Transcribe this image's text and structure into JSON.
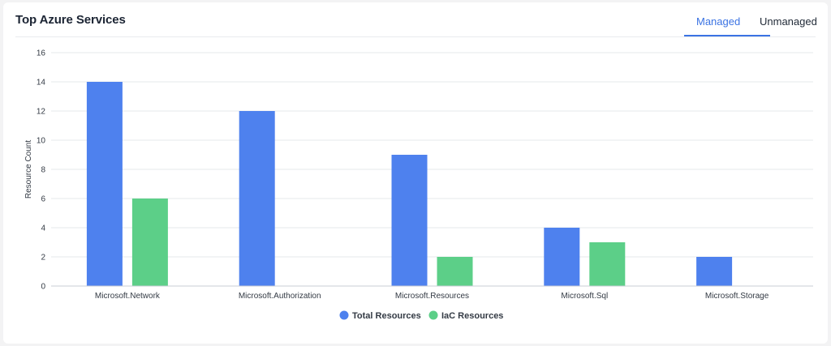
{
  "card": {
    "title": "Top Azure Services",
    "tabs": [
      {
        "label": "Managed",
        "active": true
      },
      {
        "label": "Unmanaged",
        "active": false
      }
    ]
  },
  "colors": {
    "accent": "#3b73e3",
    "total": "#4e81ee",
    "iac": "#5ccf88"
  },
  "chart_data": {
    "type": "bar",
    "categories": [
      "Microsoft.Network",
      "Microsoft.Authorization",
      "Microsoft.Resources",
      "Microsoft.Sql",
      "Microsoft.Storage"
    ],
    "series": [
      {
        "name": "Total Resources",
        "values": [
          14,
          12,
          9,
          4,
          2
        ],
        "color": "#4e81ee"
      },
      {
        "name": "IaC Resources",
        "values": [
          6,
          0,
          2,
          3,
          0
        ],
        "color": "#5ccf88"
      }
    ],
    "ylabel": "Resource Count",
    "xlabel": "",
    "ylim": [
      0,
      16
    ],
    "yticks": [
      0,
      2,
      4,
      6,
      8,
      10,
      12,
      14,
      16
    ],
    "grid": true,
    "legend": "bottom-center"
  }
}
